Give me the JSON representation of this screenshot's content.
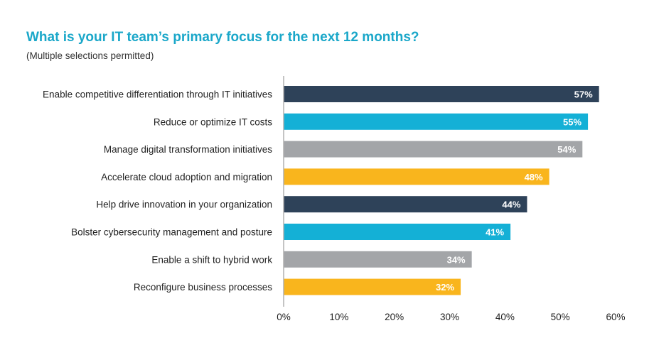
{
  "chart_data": {
    "type": "bar",
    "orientation": "horizontal",
    "title": "What is your IT team’s primary focus for the next 12 months?",
    "subtitle": "(Multiple selections permitted)",
    "xlabel": "",
    "ylabel": "",
    "categories": [
      "Enable competitive differentiation through IT initiatives",
      "Reduce or optimize IT costs",
      "Manage digital transformation initiatives",
      "Accelerate cloud adoption and migration",
      "Help drive innovation in your organization",
      "Bolster cybersecurity management and posture",
      "Enable a shift to hybrid work",
      "Reconfigure business processes"
    ],
    "values": [
      57,
      55,
      54,
      48,
      44,
      41,
      34,
      32
    ],
    "value_labels": [
      "57%",
      "55%",
      "54%",
      "48%",
      "44%",
      "41%",
      "34%",
      "32%"
    ],
    "colors": [
      "#2e4259",
      "#14b0d6",
      "#a3a5a8",
      "#f9b51d",
      "#2e4259",
      "#14b0d6",
      "#a3a5a8",
      "#f9b51d"
    ],
    "xlim": [
      0,
      60
    ],
    "xticks": [
      0,
      10,
      20,
      30,
      40,
      50,
      60
    ],
    "xtick_labels": [
      "0%",
      "10%",
      "20%",
      "30%",
      "40%",
      "50%",
      "60%"
    ],
    "grid": false,
    "legend": "none"
  }
}
